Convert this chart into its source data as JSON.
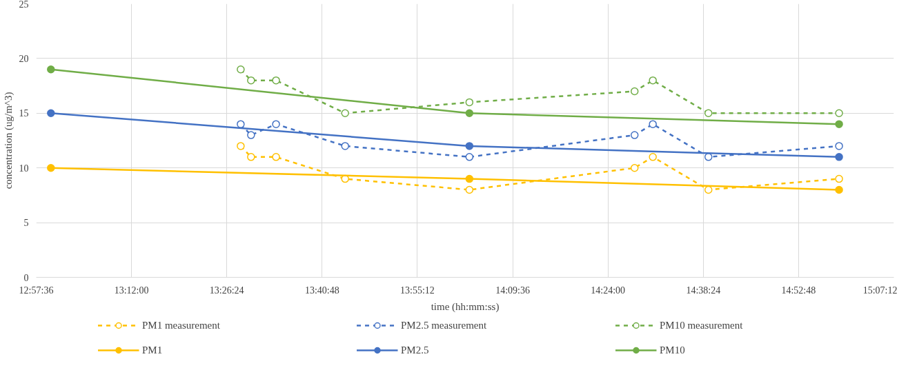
{
  "chart_data": {
    "type": "line",
    "xlabel": "time (hh:mm:ss)",
    "ylabel": "concentration (ug/m^3)",
    "xlim": [
      12.96,
      15.12
    ],
    "ylim": [
      0,
      25
    ],
    "xticks": [
      {
        "value": 12.96,
        "label": "12:57:36"
      },
      {
        "value": 13.2,
        "label": "13:12:00"
      },
      {
        "value": 13.44,
        "label": "13:26:24"
      },
      {
        "value": 13.68,
        "label": "13:40:48"
      },
      {
        "value": 13.92,
        "label": "13:55:12"
      },
      {
        "value": 14.16,
        "label": "14:09:36"
      },
      {
        "value": 14.4,
        "label": "14:24:00"
      },
      {
        "value": 14.64,
        "label": "14:38:24"
      },
      {
        "value": 14.88,
        "label": "14:52:48"
      },
      {
        "value": 15.12,
        "label": "15:07:12"
      }
    ],
    "yticks": [
      0,
      5,
      10,
      15,
      20,
      25
    ],
    "grid": true,
    "legend": "bottom",
    "marker": "circle",
    "series": [
      {
        "name": "PM1 measurement",
        "color": "#ffc000",
        "line_style": "dashed",
        "x": [
          13.475,
          13.501,
          13.564,
          13.738,
          14.051,
          14.467,
          14.513,
          14.653,
          14.982
        ],
        "values": [
          12,
          11,
          11,
          9,
          8,
          10,
          11,
          8,
          9
        ]
      },
      {
        "name": "PM2.5 measurement",
        "color": "#4472c4",
        "line_style": "dashed",
        "x": [
          13.475,
          13.501,
          13.564,
          13.738,
          14.051,
          14.467,
          14.513,
          14.653,
          14.982
        ],
        "values": [
          14,
          13,
          14,
          12,
          11,
          13,
          14,
          11,
          12
        ]
      },
      {
        "name": "PM10 measurement",
        "color": "#70ad47",
        "line_style": "dashed",
        "x": [
          13.475,
          13.501,
          13.564,
          13.738,
          14.051,
          14.467,
          14.513,
          14.653,
          14.982
        ],
        "values": [
          19,
          18,
          18,
          15,
          16,
          17,
          18,
          15,
          15
        ]
      },
      {
        "name": "PM1",
        "color": "#ffc000",
        "line_style": "solid",
        "x": [
          12.997,
          14.051,
          14.982
        ],
        "values": [
          10,
          9,
          8
        ]
      },
      {
        "name": "PM2.5",
        "color": "#4472c4",
        "line_style": "solid",
        "x": [
          12.997,
          14.051,
          14.982
        ],
        "values": [
          15,
          12,
          11
        ]
      },
      {
        "name": "PM10",
        "color": "#70ad47",
        "line_style": "solid",
        "x": [
          12.997,
          14.051,
          14.982
        ],
        "values": [
          19,
          15,
          14
        ]
      }
    ]
  }
}
